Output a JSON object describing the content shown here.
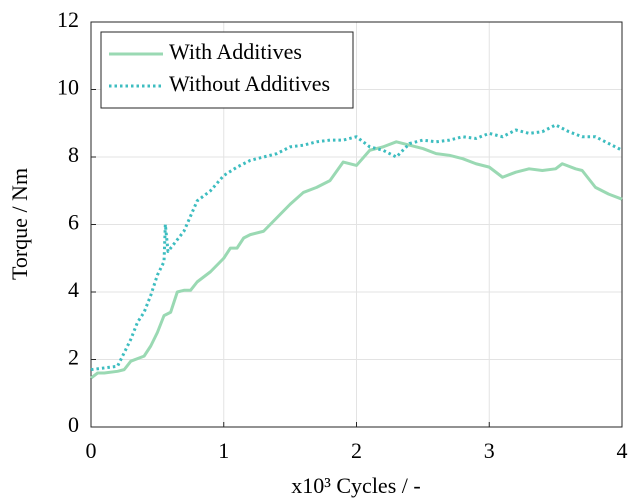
{
  "chart_data": {
    "type": "line",
    "xlabel": "x10³ Cycles / -",
    "ylabel": "Torque / Nm",
    "xlim": [
      0,
      4
    ],
    "xticks": [
      0,
      1,
      2,
      3,
      4
    ],
    "ylim": [
      0,
      12
    ],
    "yticks": [
      0,
      2,
      4,
      6,
      8,
      10,
      12
    ],
    "grid": true,
    "legend": "upper-left",
    "series": [
      {
        "name": "With Additives",
        "color": "#9ad9b3",
        "linestyle": "solid",
        "x": [
          0,
          0.05,
          0.1,
          0.2,
          0.25,
          0.3,
          0.4,
          0.45,
          0.5,
          0.55,
          0.6,
          0.65,
          0.7,
          0.75,
          0.8,
          0.9,
          1.0,
          1.05,
          1.1,
          1.15,
          1.2,
          1.3,
          1.4,
          1.5,
          1.6,
          1.7,
          1.8,
          1.9,
          2.0,
          2.1,
          2.2,
          2.3,
          2.4,
          2.5,
          2.6,
          2.7,
          2.8,
          2.9,
          3.0,
          3.1,
          3.2,
          3.3,
          3.4,
          3.5,
          3.55,
          3.65,
          3.7,
          3.8,
          3.9,
          4.0
        ],
        "values": [
          1.45,
          1.6,
          1.6,
          1.65,
          1.7,
          1.95,
          2.1,
          2.4,
          2.8,
          3.3,
          3.4,
          4.0,
          4.05,
          4.05,
          4.3,
          4.6,
          5.0,
          5.3,
          5.3,
          5.6,
          5.7,
          5.8,
          6.2,
          6.6,
          6.95,
          7.1,
          7.3,
          7.85,
          7.75,
          8.2,
          8.3,
          8.45,
          8.35,
          8.25,
          8.1,
          8.05,
          7.95,
          7.8,
          7.7,
          7.4,
          7.55,
          7.65,
          7.6,
          7.65,
          7.8,
          7.65,
          7.6,
          7.1,
          6.9,
          6.75
        ]
      },
      {
        "name": "Without Additives",
        "color": "#3dbdc0",
        "linestyle": "dotted",
        "x": [
          0,
          0.1,
          0.2,
          0.25,
          0.3,
          0.35,
          0.4,
          0.45,
          0.5,
          0.55,
          0.56,
          0.58,
          0.6,
          0.7,
          0.8,
          0.9,
          1.0,
          1.1,
          1.2,
          1.3,
          1.4,
          1.5,
          1.6,
          1.7,
          1.8,
          1.9,
          2.0,
          2.1,
          2.2,
          2.3,
          2.4,
          2.5,
          2.6,
          2.7,
          2.8,
          2.9,
          3.0,
          3.1,
          3.2,
          3.3,
          3.4,
          3.5,
          3.6,
          3.7,
          3.8,
          3.9,
          4.0
        ],
        "values": [
          1.7,
          1.75,
          1.8,
          2.2,
          2.6,
          3.1,
          3.4,
          3.9,
          4.5,
          4.9,
          6.0,
          5.2,
          5.3,
          5.8,
          6.7,
          7.0,
          7.45,
          7.7,
          7.9,
          8.0,
          8.1,
          8.3,
          8.35,
          8.45,
          8.5,
          8.5,
          8.6,
          8.3,
          8.2,
          8.0,
          8.4,
          8.5,
          8.45,
          8.5,
          8.6,
          8.55,
          8.7,
          8.6,
          8.8,
          8.7,
          8.75,
          8.95,
          8.75,
          8.6,
          8.6,
          8.4,
          8.2
        ]
      }
    ]
  }
}
